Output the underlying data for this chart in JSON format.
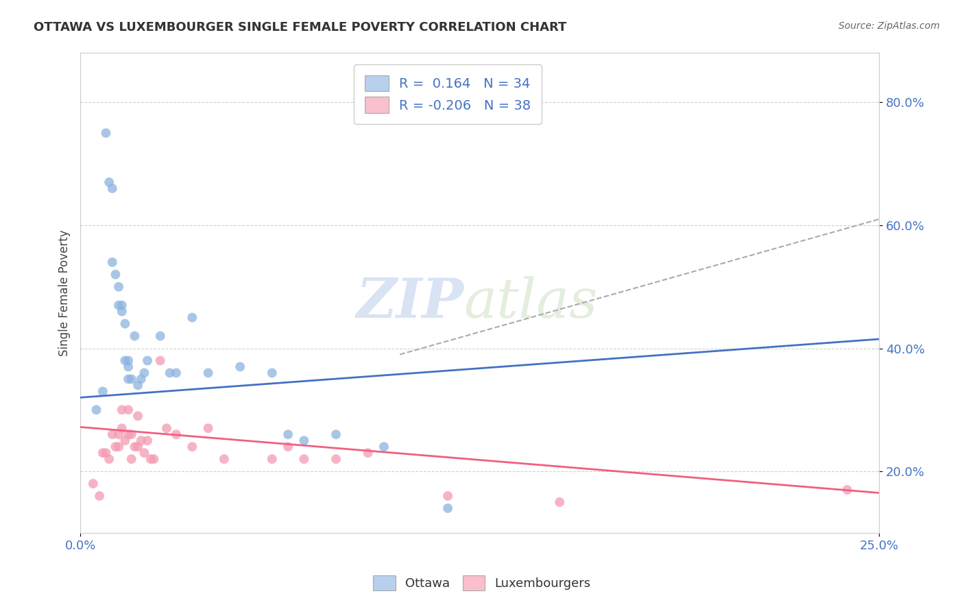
{
  "title": "OTTAWA VS LUXEMBOURGER SINGLE FEMALE POVERTY CORRELATION CHART",
  "source": "Source: ZipAtlas.com",
  "ylabel": "Single Female Poverty",
  "xlim": [
    0.0,
    0.25
  ],
  "ylim": [
    0.1,
    0.88
  ],
  "yticks": [
    0.2,
    0.4,
    0.6,
    0.8
  ],
  "ytick_labels": [
    "20.0%",
    "40.0%",
    "60.0%",
    "80.0%"
  ],
  "xticks": [
    0.0,
    0.25
  ],
  "xtick_labels": [
    "0.0%",
    "25.0%"
  ],
  "ottawa_R": 0.164,
  "ottawa_N": 34,
  "luxembourger_R": -0.206,
  "luxembourger_N": 38,
  "ottawa_color": "#8cb4e0",
  "luxembourger_color": "#f49ab0",
  "ottawa_legend_fill": "#b8d0ed",
  "luxembourger_legend_fill": "#f9bfcc",
  "trend_blue_color": "#4472c4",
  "trend_blue_dash_color": "#aaaaaa",
  "trend_pink_color": "#f06080",
  "watermark_zip": "ZIP",
  "watermark_atlas": "atlas",
  "background_color": "#ffffff",
  "ottawa_x": [
    0.005,
    0.007,
    0.008,
    0.009,
    0.01,
    0.01,
    0.011,
    0.012,
    0.012,
    0.013,
    0.013,
    0.014,
    0.014,
    0.015,
    0.015,
    0.015,
    0.016,
    0.017,
    0.018,
    0.019,
    0.02,
    0.021,
    0.025,
    0.028,
    0.03,
    0.035,
    0.04,
    0.05,
    0.06,
    0.065,
    0.07,
    0.08,
    0.095,
    0.115
  ],
  "ottawa_y": [
    0.3,
    0.33,
    0.75,
    0.67,
    0.66,
    0.54,
    0.52,
    0.5,
    0.47,
    0.47,
    0.46,
    0.44,
    0.38,
    0.38,
    0.37,
    0.35,
    0.35,
    0.42,
    0.34,
    0.35,
    0.36,
    0.38,
    0.42,
    0.36,
    0.36,
    0.45,
    0.36,
    0.37,
    0.36,
    0.26,
    0.25,
    0.26,
    0.24,
    0.14
  ],
  "luxembourger_x": [
    0.004,
    0.006,
    0.007,
    0.008,
    0.009,
    0.01,
    0.011,
    0.012,
    0.012,
    0.013,
    0.013,
    0.014,
    0.015,
    0.015,
    0.016,
    0.016,
    0.017,
    0.018,
    0.018,
    0.019,
    0.02,
    0.021,
    0.022,
    0.023,
    0.025,
    0.027,
    0.03,
    0.035,
    0.04,
    0.045,
    0.06,
    0.065,
    0.07,
    0.08,
    0.09,
    0.115,
    0.15,
    0.24
  ],
  "luxembourger_y": [
    0.18,
    0.16,
    0.23,
    0.23,
    0.22,
    0.26,
    0.24,
    0.26,
    0.24,
    0.27,
    0.3,
    0.25,
    0.3,
    0.26,
    0.26,
    0.22,
    0.24,
    0.24,
    0.29,
    0.25,
    0.23,
    0.25,
    0.22,
    0.22,
    0.38,
    0.27,
    0.26,
    0.24,
    0.27,
    0.22,
    0.22,
    0.24,
    0.22,
    0.22,
    0.23,
    0.16,
    0.15,
    0.17
  ],
  "trend_ottawa_x0": 0.0,
  "trend_ottawa_y0": 0.32,
  "trend_ottawa_x1": 0.25,
  "trend_ottawa_y1": 0.415,
  "trend_lux_x0": 0.0,
  "trend_lux_y0": 0.272,
  "trend_lux_x1": 0.25,
  "trend_lux_y1": 0.165,
  "trend_dash_x0": 0.1,
  "trend_dash_y0": 0.39,
  "trend_dash_x1": 0.25,
  "trend_dash_y1": 0.61
}
